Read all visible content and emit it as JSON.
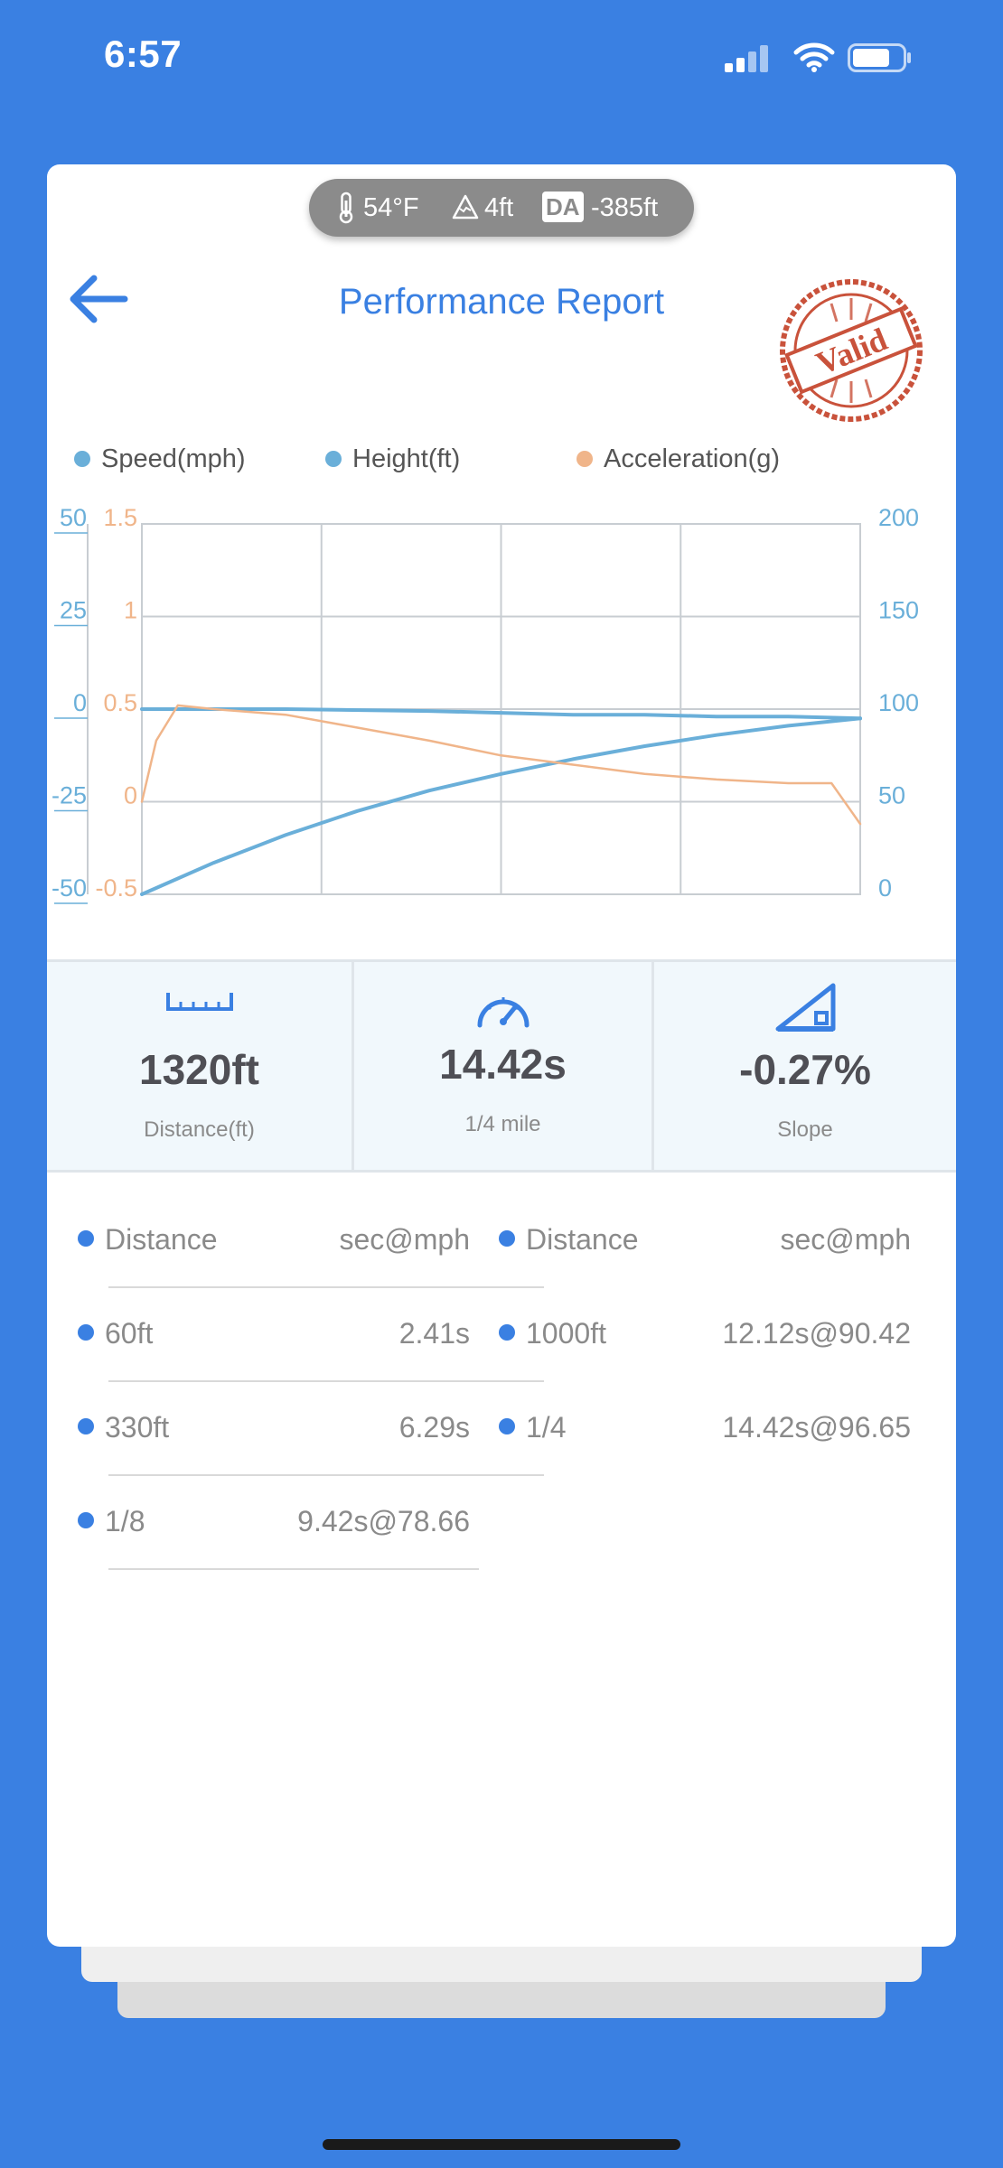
{
  "status": {
    "time": "6:57"
  },
  "conditions": {
    "temperature": "54°F",
    "elevation": "4ft",
    "da_badge": "DA",
    "density_altitude": "-385ft"
  },
  "header": {
    "title": "Performance Report",
    "stamp_text": "Valid"
  },
  "chart_data": {
    "type": "line",
    "legend": [
      {
        "name": "Speed(mph)",
        "color": "#6aafd9"
      },
      {
        "name": "Height(ft)",
        "color": "#6aafd9"
      },
      {
        "name": "Acceleration(g)",
        "color": "#f0b58a"
      }
    ],
    "axes": {
      "left_outer": {
        "ticks": [
          "50",
          "25",
          "0",
          "-25",
          "-50"
        ],
        "range": [
          -50,
          50
        ],
        "color": "#6aafd9"
      },
      "left_inner": {
        "ticks": [
          "1.5",
          "1",
          "0.5",
          "0",
          "-0.5"
        ],
        "range": [
          -0.5,
          1.5
        ],
        "color": "#f0b58a"
      },
      "right": {
        "ticks": [
          "200",
          "150",
          "100",
          "50",
          "0"
        ],
        "range": [
          0,
          200
        ],
        "color": "#6aafd9"
      }
    },
    "x_range": [
      0,
      1
    ],
    "grid": true,
    "series": [
      {
        "name": "Speed(mph)",
        "axis": "right",
        "x": [
          0,
          0.1,
          0.2,
          0.3,
          0.4,
          0.5,
          0.6,
          0.7,
          0.8,
          0.9,
          1.0
        ],
        "values": [
          0,
          17,
          32,
          45,
          56,
          65,
          73,
          80,
          86,
          91,
          95
        ]
      },
      {
        "name": "Height(ft)",
        "axis": "right",
        "x": [
          0,
          0.2,
          0.4,
          0.5,
          0.6,
          0.7,
          0.8,
          0.9,
          1.0
        ],
        "values": [
          100,
          100,
          99,
          98,
          97,
          97,
          96,
          96,
          95
        ]
      },
      {
        "name": "Acceleration(g)",
        "axis": "left_inner",
        "x": [
          0,
          0.02,
          0.05,
          0.1,
          0.2,
          0.3,
          0.4,
          0.5,
          0.6,
          0.7,
          0.8,
          0.9,
          0.96,
          1.0
        ],
        "values": [
          0,
          0.33,
          0.52,
          0.5,
          0.47,
          0.4,
          0.33,
          0.25,
          0.2,
          0.15,
          0.12,
          0.1,
          0.1,
          -0.12
        ]
      }
    ]
  },
  "stats": [
    {
      "icon": "ruler-icon",
      "value": "1320ft",
      "label": "Distance(ft)"
    },
    {
      "icon": "speedometer-icon",
      "value": "14.42s",
      "label": "1/4 mile"
    },
    {
      "icon": "slope-icon",
      "value": "-0.27%",
      "label": "Slope"
    }
  ],
  "splits": {
    "left": [
      {
        "name": "Distance",
        "value": "sec@mph"
      },
      {
        "name": "60ft",
        "value": "2.41s"
      },
      {
        "name": "330ft",
        "value": "6.29s"
      },
      {
        "name": "1/8",
        "value": "9.42s@78.66"
      }
    ],
    "right": [
      {
        "name": "Distance",
        "value": "sec@mph"
      },
      {
        "name": "1000ft",
        "value": "12.12s@90.42"
      },
      {
        "name": "1/4",
        "value": "14.42s@96.65"
      }
    ]
  },
  "colors": {
    "background": "#3a80e2",
    "accent": "#3a80e2",
    "speed": "#6aafd9",
    "acceleration": "#f0b58a",
    "stamp": "#c9523b"
  }
}
